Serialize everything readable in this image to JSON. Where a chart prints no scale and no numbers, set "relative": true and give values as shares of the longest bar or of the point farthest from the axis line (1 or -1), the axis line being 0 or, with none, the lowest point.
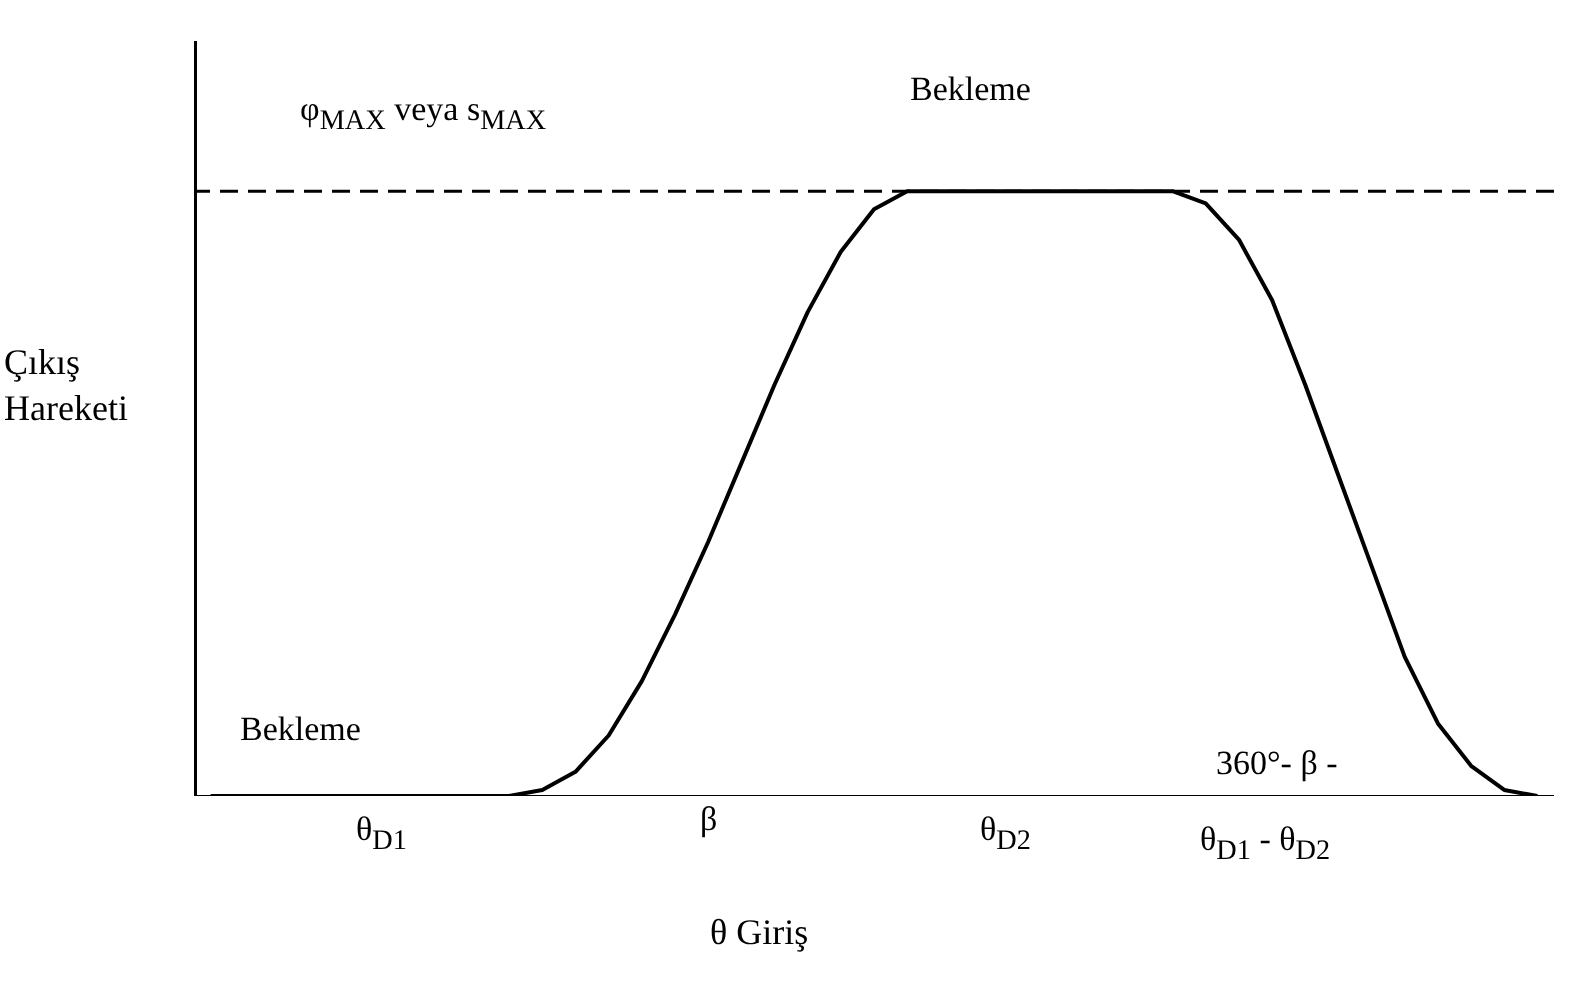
{
  "chart_data": {
    "type": "line",
    "relative": true,
    "xlabel": "θ Giriş",
    "ylabel": "Çıkış Hareketi",
    "categories": [
      null,
      null,
      null,
      null,
      null,
      null,
      null,
      null,
      null,
      null,
      null,
      null,
      null,
      null,
      null,
      null,
      null,
      null,
      null,
      null,
      null,
      null,
      null,
      null,
      null,
      null,
      null,
      null,
      null,
      null,
      null,
      null,
      null,
      null,
      null,
      null,
      null,
      null,
      null,
      null,
      null
    ],
    "series": [
      {
        "color": "#000000",
        "values": [
          0,
          0,
          0,
          0,
          0,
          0,
          0,
          0,
          0,
          0,
          0.01,
          0.04,
          0.1,
          0.19,
          0.3,
          0.42,
          0.55,
          0.68,
          0.8,
          0.9,
          0.97,
          1,
          1,
          1,
          1,
          1,
          1,
          1,
          1,
          1,
          0.98,
          0.92,
          0.82,
          0.68,
          0.53,
          0.38,
          0.23,
          0.12,
          0.05,
          0.01,
          0
        ]
      }
    ],
    "ref_lines": [
      {
        "axis": "y",
        "value": 1,
        "line_style": "dashed",
        "color": "#000000"
      }
    ],
    "annotations": [
      "φ$_{MAX}$ veya s$_{MAX}$",
      "Bekleme",
      "Bekleme",
      "θ$_{D1}$",
      "β",
      "θ$_{D2}$",
      "360°- β -",
      "θ$_{D1}$ - θ$_{D2}$"
    ],
    "grid": false,
    "line_style": "solid",
    "marker": "none"
  }
}
